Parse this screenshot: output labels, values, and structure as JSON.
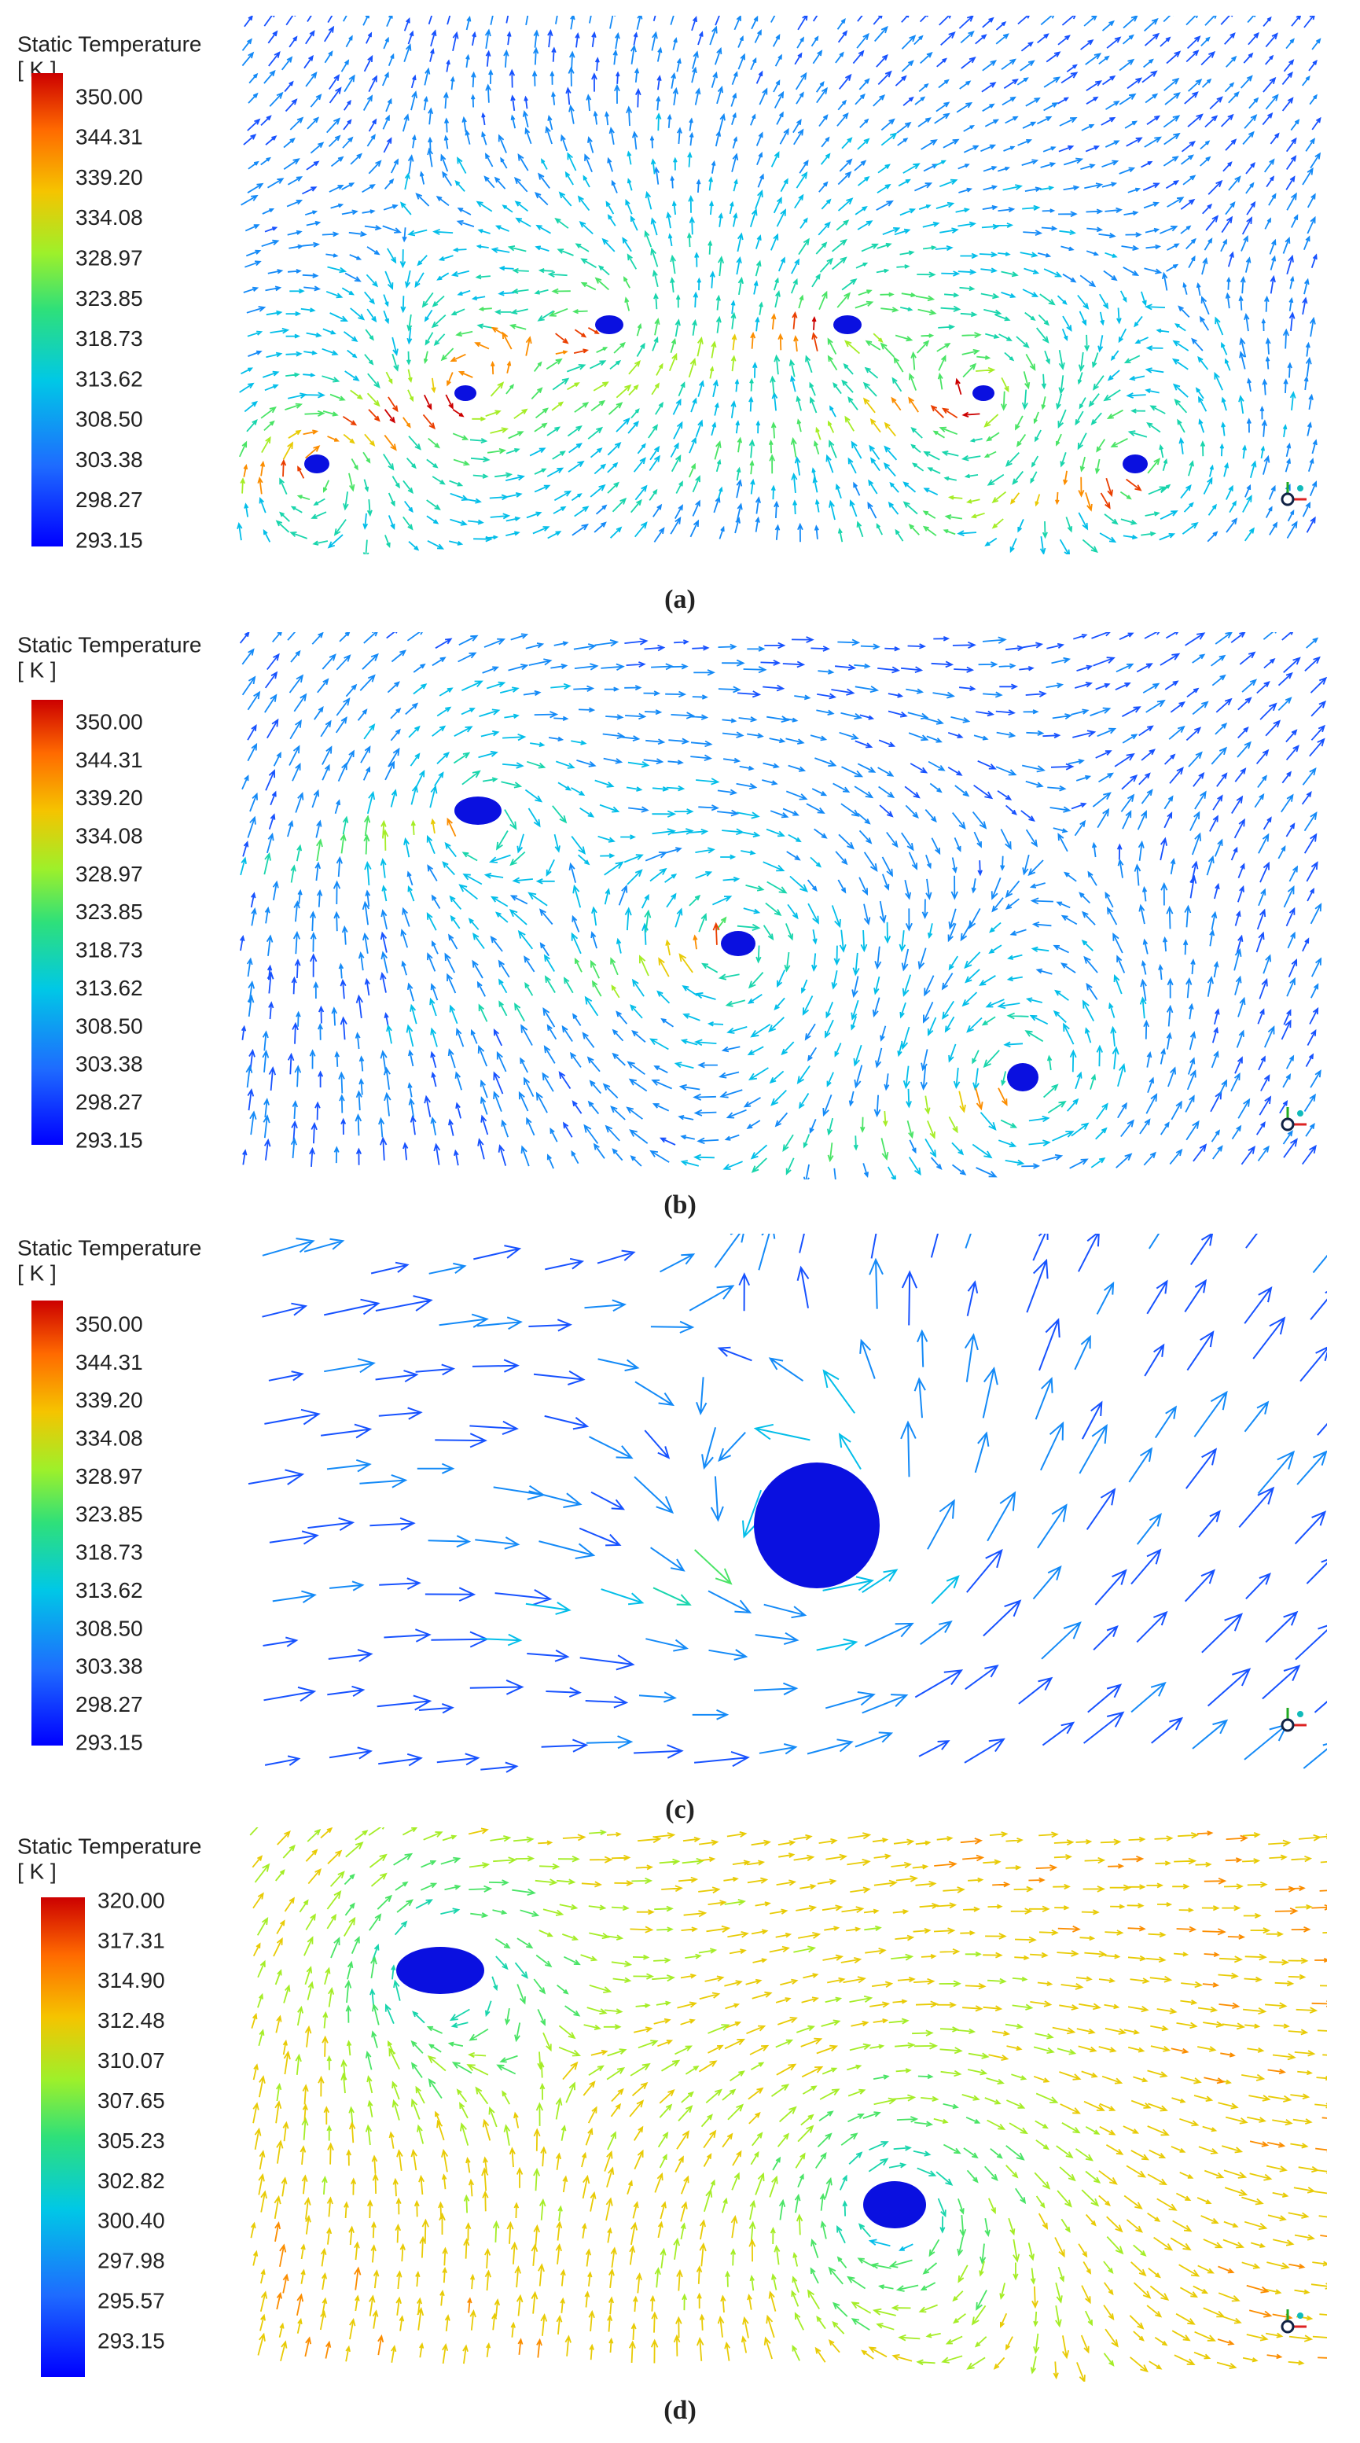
{
  "panels": [
    {
      "legend": {
        "title": "Static Temperature",
        "unit": "[ K ]",
        "labels": [
          "350.00",
          "344.31",
          "339.20",
          "334.08",
          "328.97",
          "323.85",
          "318.73",
          "313.62",
          "308.50",
          "303.38",
          "298.27",
          "293.15"
        ]
      },
      "caption": "(a)"
    },
    {
      "legend": {
        "title": "Static Temperature",
        "unit": "[ K ]",
        "labels": [
          "350.00",
          "344.31",
          "339.20",
          "334.08",
          "328.97",
          "323.85",
          "318.73",
          "313.62",
          "308.50",
          "303.38",
          "298.27",
          "293.15"
        ]
      },
      "caption": "(b)"
    },
    {
      "legend": {
        "title": "Static Temperature",
        "unit": "[ K ]",
        "labels": [
          "350.00",
          "344.31",
          "339.20",
          "334.08",
          "328.97",
          "323.85",
          "318.73",
          "313.62",
          "308.50",
          "303.38",
          "298.27",
          "293.15"
        ]
      },
      "caption": "(c)"
    },
    {
      "legend": {
        "title": "Static Temperature",
        "unit": "[ K ]",
        "labels": [
          "320.00",
          "317.31",
          "314.90",
          "312.48",
          "310.07",
          "307.65",
          "305.23",
          "302.82",
          "300.40",
          "297.98",
          "295.57",
          "293.15"
        ]
      },
      "caption": "(d)"
    }
  ]
}
